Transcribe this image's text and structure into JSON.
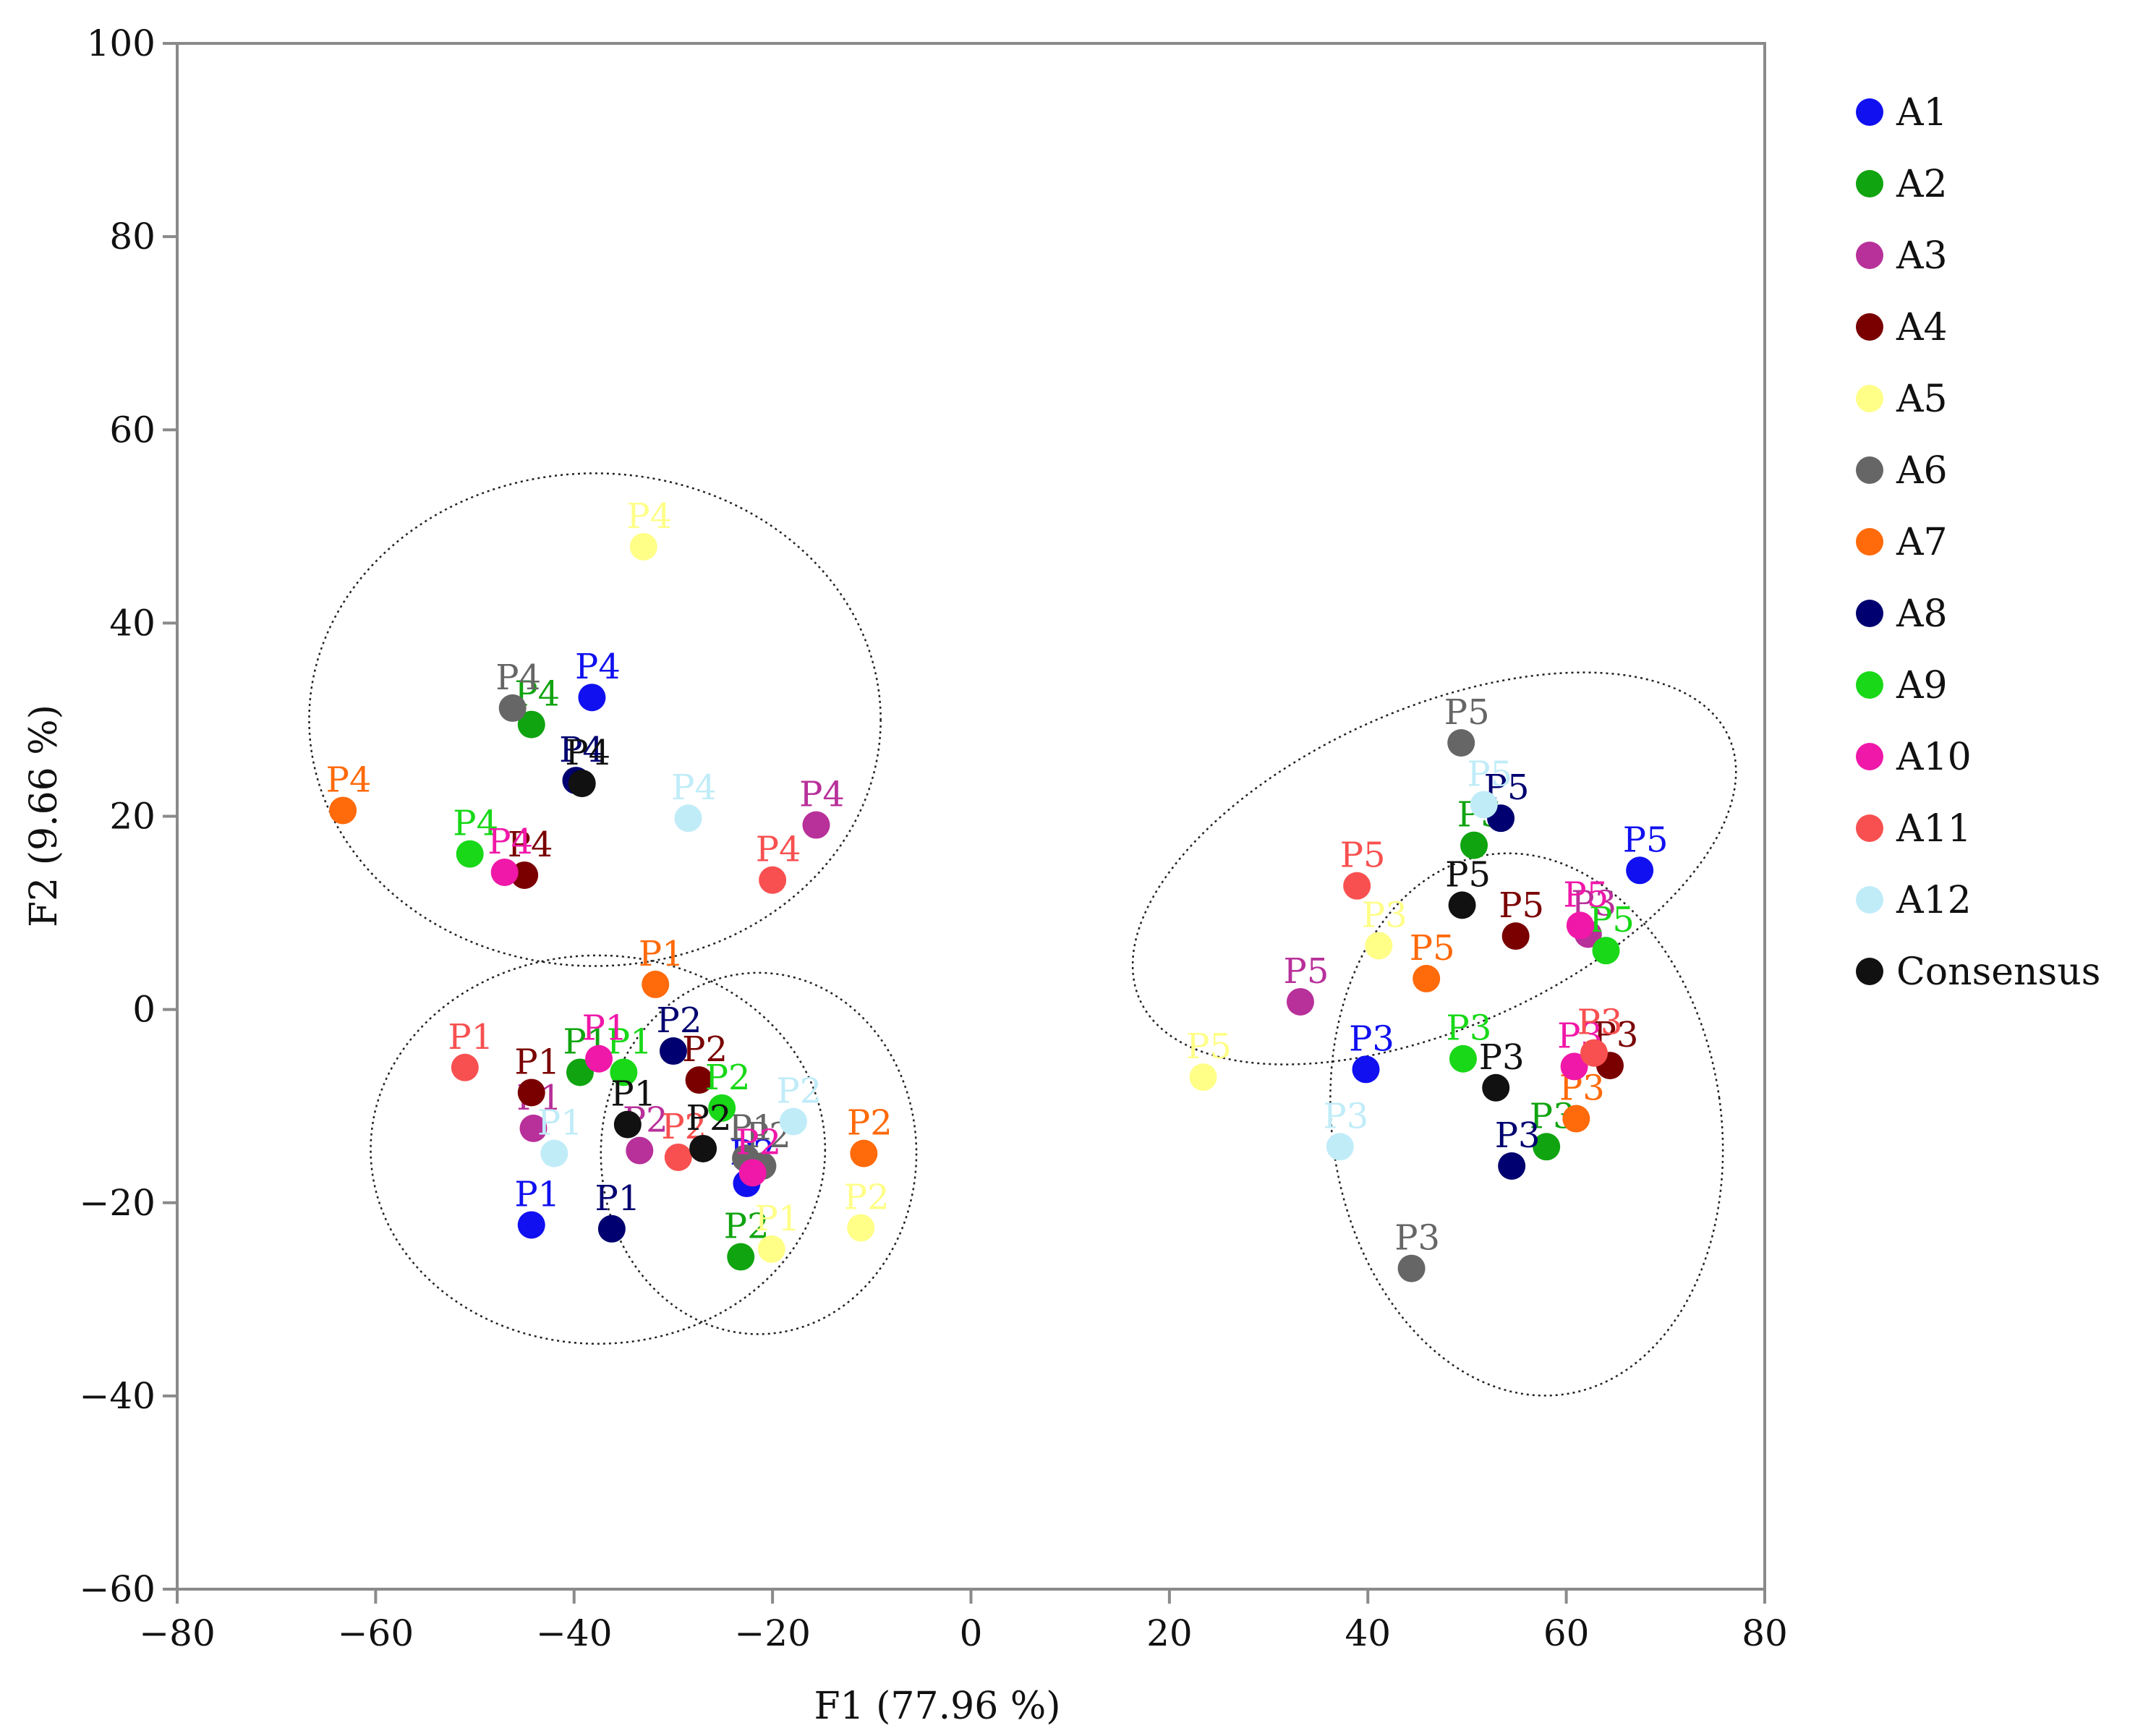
{
  "chart_data": {
    "type": "scatter",
    "xlabel": "F1 (77.96 %)",
    "ylabel": "F2 (9.66 %)",
    "xlim": [
      -80,
      80
    ],
    "ylim": [
      -60,
      100
    ],
    "xticks": [
      -80,
      -60,
      -40,
      -20,
      0,
      20,
      40,
      60,
      80
    ],
    "yticks": [
      -60,
      -40,
      -20,
      0,
      20,
      40,
      60,
      80,
      100
    ],
    "xtick_labels": [
      "−80",
      "−60",
      "−40",
      "−20",
      "0",
      "20",
      "40",
      "60",
      "80"
    ],
    "ytick_labels": [
      "−60",
      "−40",
      "−20",
      "0",
      "20",
      "40",
      "60",
      "80",
      "100"
    ],
    "legend_position": "right",
    "series": [
      {
        "name": "A1",
        "color": "#1010f0",
        "points": [
          {
            "label": "P1",
            "x": -44.3,
            "y": -22.3
          },
          {
            "label": "P2",
            "x": -22.6,
            "y": -18.0
          },
          {
            "label": "P3",
            "x": 39.8,
            "y": -6.2
          },
          {
            "label": "P4",
            "x": -38.2,
            "y": 32.3
          },
          {
            "label": "P5",
            "x": 67.4,
            "y": 14.4
          }
        ]
      },
      {
        "name": "A2",
        "color": "#10a410",
        "points": [
          {
            "label": "P1",
            "x": -39.4,
            "y": -6.5
          },
          {
            "label": "P2",
            "x": -23.2,
            "y": -25.6
          },
          {
            "label": "P3",
            "x": 58.0,
            "y": -14.2
          },
          {
            "label": "P4",
            "x": -44.3,
            "y": 29.5
          },
          {
            "label": "P5",
            "x": 50.7,
            "y": 17.0
          }
        ]
      },
      {
        "name": "A3",
        "color": "#b8309a",
        "points": [
          {
            "label": "P1",
            "x": -44.1,
            "y": -12.3
          },
          {
            "label": "P2",
            "x": -33.4,
            "y": -14.6
          },
          {
            "label": "P3",
            "x": 62.2,
            "y": 7.8
          },
          {
            "label": "P4",
            "x": -15.6,
            "y": 19.1
          },
          {
            "label": "P5",
            "x": 33.2,
            "y": 0.8
          }
        ]
      },
      {
        "name": "A4",
        "color": "#7a0000",
        "points": [
          {
            "label": "P1",
            "x": -44.3,
            "y": -8.6
          },
          {
            "label": "P2",
            "x": -27.4,
            "y": -7.3
          },
          {
            "label": "P3",
            "x": 64.4,
            "y": -5.8
          },
          {
            "label": "P4",
            "x": -45.0,
            "y": 13.9
          },
          {
            "label": "P5",
            "x": 54.9,
            "y": 7.6
          }
        ]
      },
      {
        "name": "A5",
        "color": "#ffff88",
        "points": [
          {
            "label": "P1",
            "x": -20.1,
            "y": -24.8
          },
          {
            "label": "P2",
            "x": -11.1,
            "y": -22.6
          },
          {
            "label": "P3",
            "x": 41.1,
            "y": 6.6
          },
          {
            "label": "P4",
            "x": -33.0,
            "y": 47.9
          },
          {
            "label": "P5",
            "x": 23.4,
            "y": -7.0
          }
        ]
      },
      {
        "name": "A6",
        "color": "#666666",
        "points": [
          {
            "label": "P1",
            "x": -22.7,
            "y": -15.4
          },
          {
            "label": "P2",
            "x": -21.0,
            "y": -16.2
          },
          {
            "label": "P3",
            "x": 44.4,
            "y": -26.8
          },
          {
            "label": "P4",
            "x": -46.2,
            "y": 31.2
          },
          {
            "label": "P5",
            "x": 49.4,
            "y": 27.6
          }
        ]
      },
      {
        "name": "A7",
        "color": "#ff6a0a",
        "points": [
          {
            "label": "P1",
            "x": -31.8,
            "y": 2.6
          },
          {
            "label": "P2",
            "x": -10.8,
            "y": -14.9
          },
          {
            "label": "P3",
            "x": 61.0,
            "y": -11.3
          },
          {
            "label": "P4",
            "x": -63.3,
            "y": 20.6
          },
          {
            "label": "P5",
            "x": 45.9,
            "y": 3.2
          }
        ]
      },
      {
        "name": "A8",
        "color": "#000070",
        "points": [
          {
            "label": "P1",
            "x": -36.2,
            "y": -22.7
          },
          {
            "label": "P2",
            "x": -30.0,
            "y": -4.3
          },
          {
            "label": "P3",
            "x": 54.5,
            "y": -16.2
          },
          {
            "label": "P4",
            "x": -39.8,
            "y": 23.7
          },
          {
            "label": "P5",
            "x": 53.4,
            "y": 19.8
          }
        ]
      },
      {
        "name": "A9",
        "color": "#18d818",
        "points": [
          {
            "label": "P1",
            "x": -35.0,
            "y": -6.5
          },
          {
            "label": "P2",
            "x": -25.1,
            "y": -10.2
          },
          {
            "label": "P3",
            "x": 49.6,
            "y": -5.1
          },
          {
            "label": "P4",
            "x": -50.5,
            "y": 16.1
          },
          {
            "label": "P5",
            "x": 64.0,
            "y": 6.1
          }
        ]
      },
      {
        "name": "A10",
        "color": "#f018a8",
        "points": [
          {
            "label": "P1",
            "x": -37.5,
            "y": -5.1
          },
          {
            "label": "P2",
            "x": -22.0,
            "y": -16.9
          },
          {
            "label": "P3",
            "x": 60.8,
            "y": -5.9
          },
          {
            "label": "P4",
            "x": -47.0,
            "y": 14.2
          },
          {
            "label": "P5",
            "x": 61.4,
            "y": 8.7
          }
        ]
      },
      {
        "name": "A11",
        "color": "#f85050",
        "points": [
          {
            "label": "P1",
            "x": -51.0,
            "y": -6.0
          },
          {
            "label": "P2",
            "x": -29.5,
            "y": -15.3
          },
          {
            "label": "P3",
            "x": 62.8,
            "y": -4.5
          },
          {
            "label": "P4",
            "x": -20.0,
            "y": 13.4
          },
          {
            "label": "P5",
            "x": 38.9,
            "y": 12.8
          }
        ]
      },
      {
        "name": "A12",
        "color": "#c0ecf8",
        "points": [
          {
            "label": "P1",
            "x": -42.0,
            "y": -14.9
          },
          {
            "label": "P2",
            "x": -17.9,
            "y": -11.6
          },
          {
            "label": "P3",
            "x": 37.2,
            "y": -14.2
          },
          {
            "label": "P4",
            "x": -28.5,
            "y": 19.8
          },
          {
            "label": "P5",
            "x": 51.7,
            "y": 21.2
          }
        ]
      },
      {
        "name": "Consensus",
        "color": "#111111",
        "points": [
          {
            "label": "P1",
            "x": -34.6,
            "y": -11.9
          },
          {
            "label": "P2",
            "x": -27.0,
            "y": -14.4
          },
          {
            "label": "P3",
            "x": 52.9,
            "y": -8.1
          },
          {
            "label": "P4",
            "x": -39.2,
            "y": 23.4
          },
          {
            "label": "P5",
            "x": 49.5,
            "y": 10.8
          }
        ]
      }
    ],
    "ellipses": [
      {
        "group": "P4",
        "cx": -37.9,
        "cy": 30.0,
        "rx": 28.8,
        "ry": 25.5,
        "angle": 0
      },
      {
        "group": "P1",
        "cx": -37.6,
        "cy": -14.5,
        "rx": 22.9,
        "ry": 20.1,
        "angle": 0
      },
      {
        "group": "P2",
        "cx": -21.4,
        "cy": -14.9,
        "rx": 15.9,
        "ry": 18.7,
        "angle": 0
      },
      {
        "group": "P5",
        "cx": 46.7,
        "cy": 14.6,
        "rx": 32.5,
        "ry": 16.5,
        "angle": 24
      },
      {
        "group": "P3",
        "cx": 56.0,
        "cy": -11.9,
        "rx": 19.6,
        "ry": 28.2,
        "angle": 8
      }
    ]
  }
}
